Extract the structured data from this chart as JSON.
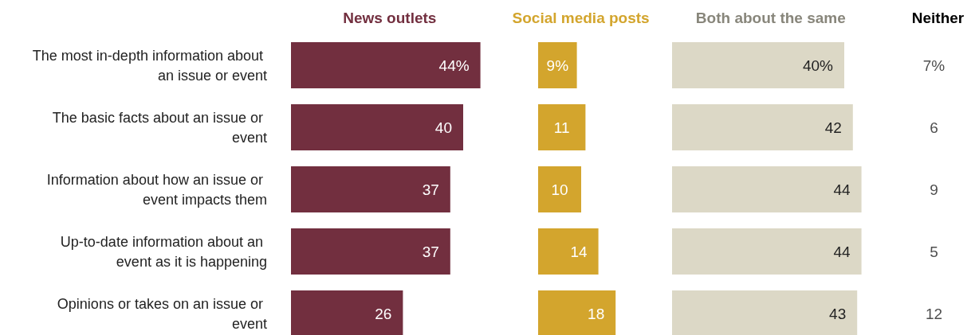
{
  "chart_data": [
    {
      "type": "bar",
      "orientation": "horizontal",
      "title": "News outlets",
      "categories": [
        "The most in-depth information about an issue or event",
        "The basic facts about an issue or event",
        "Information about how an issue or event impacts them",
        "Up-to-date information about an event as it is happening",
        "Opinions or takes on an issue or event"
      ],
      "values": [
        44,
        40,
        37,
        37,
        26
      ],
      "value_labels": [
        "44%",
        "40",
        "37",
        "37",
        "26"
      ],
      "color": "#722f3f",
      "tick_labels": "y"
    },
    {
      "type": "bar",
      "orientation": "horizontal",
      "title": "Social media posts",
      "categories": [
        null,
        null,
        null,
        null,
        null
      ],
      "values": [
        9,
        11,
        10,
        14,
        18
      ],
      "value_labels": [
        "9%",
        "11",
        "10",
        "14",
        "18"
      ],
      "color": "#d3a52d"
    },
    {
      "type": "bar",
      "orientation": "horizontal",
      "title": "Both about the same",
      "categories": [
        null,
        null,
        null,
        null,
        null
      ],
      "values": [
        40,
        42,
        44,
        44,
        43
      ],
      "value_labels": [
        "40%",
        "42",
        "44",
        "44",
        "43"
      ],
      "color": "#dcd8c6"
    },
    {
      "type": "other",
      "title": "Neither",
      "values": [
        7,
        6,
        9,
        5,
        12
      ],
      "value_labels": [
        "7%",
        "6",
        "9",
        "5",
        "12"
      ]
    }
  ]
}
